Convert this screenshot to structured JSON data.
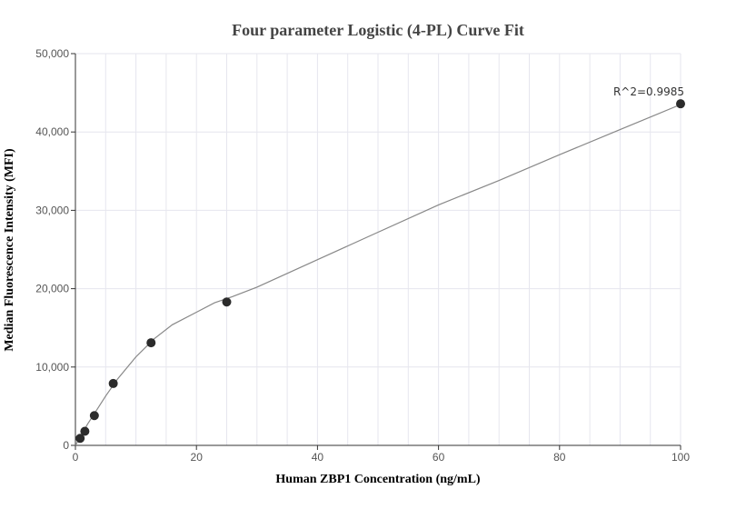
{
  "chart_data": {
    "type": "scatter",
    "title": "Four parameter Logistic (4-PL) Curve Fit",
    "xlabel": "Human ZBP1 Concentration (ng/mL)",
    "ylabel": "Median Fluorescence Intensity (MFI)",
    "xlim": [
      0,
      100
    ],
    "ylim": [
      0,
      50000
    ],
    "x_ticks": [
      0,
      20,
      40,
      60,
      80,
      100
    ],
    "y_ticks": [
      0,
      10000,
      20000,
      30000,
      40000,
      50000
    ],
    "x_tick_labels": [
      "0",
      "20",
      "40",
      "60",
      "80",
      "100"
    ],
    "y_tick_labels": [
      "0",
      "10,000",
      "20,000",
      "30,000",
      "40,000",
      "50,000"
    ],
    "grid": true,
    "x_minor_step": 5,
    "series": [
      {
        "points": [
          {
            "x": 0.78,
            "y": 900
          },
          {
            "x": 1.56,
            "y": 1800
          },
          {
            "x": 3.13,
            "y": 3800
          },
          {
            "x": 6.25,
            "y": 7900
          },
          {
            "x": 12.5,
            "y": 13100
          },
          {
            "x": 25,
            "y": 18300
          },
          {
            "x": 100,
            "y": 43600
          }
        ],
        "fit_curve": [
          {
            "x": 0,
            "y": 0
          },
          {
            "x": 1,
            "y": 1300
          },
          {
            "x": 2,
            "y": 2700
          },
          {
            "x": 3,
            "y": 3900
          },
          {
            "x": 5,
            "y": 6300
          },
          {
            "x": 7,
            "y": 8500
          },
          {
            "x": 10,
            "y": 11300
          },
          {
            "x": 13,
            "y": 13600
          },
          {
            "x": 16,
            "y": 15400
          },
          {
            "x": 20,
            "y": 17000
          },
          {
            "x": 23,
            "y": 18200
          },
          {
            "x": 26,
            "y": 19000
          },
          {
            "x": 30,
            "y": 20200
          },
          {
            "x": 40,
            "y": 23700
          },
          {
            "x": 50,
            "y": 27200
          },
          {
            "x": 60,
            "y": 30700
          },
          {
            "x": 70,
            "y": 33800
          },
          {
            "x": 80,
            "y": 37100
          },
          {
            "x": 90,
            "y": 40300
          },
          {
            "x": 100,
            "y": 43500
          }
        ]
      }
    ],
    "annotations": [
      {
        "text": "R^2=0.9985",
        "x": 100,
        "y": 43600
      }
    ],
    "colors": {
      "point": "#2b2b2b",
      "curve": "#888888",
      "grid": "#e6e6ee",
      "axis": "#333333"
    }
  }
}
